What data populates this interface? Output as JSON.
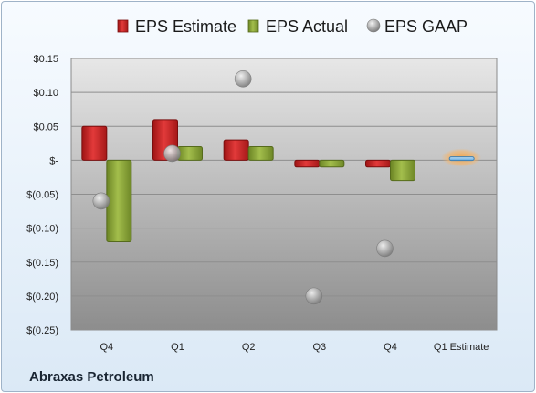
{
  "company": "Abraxas Petroleum",
  "chart_data": {
    "type": "bar",
    "categories": [
      "Q4",
      "Q1",
      "Q2",
      "Q3",
      "Q4",
      "Q1 Estimate"
    ],
    "y_tick_labels": [
      "$0.15",
      "$0.10",
      "$0.05",
      "$-",
      "$(0.05)",
      "$(0.10)",
      "$(0.15)",
      "$(0.20)",
      "$(0.25)"
    ],
    "y_tick_values": [
      0.15,
      0.1,
      0.05,
      0,
      -0.05,
      -0.1,
      -0.15,
      -0.2,
      -0.25
    ],
    "ylim": [
      -0.25,
      0.15
    ],
    "grid": true,
    "legend_placement": "top",
    "series": [
      {
        "name": "EPS Estimate",
        "kind": "bar",
        "color": "#d42a2a",
        "values": [
          0.05,
          0.06,
          0.03,
          -0.01,
          -0.01,
          null
        ]
      },
      {
        "name": "EPS Actual",
        "kind": "bar",
        "color": "#8faa3c",
        "values": [
          -0.12,
          0.02,
          0.02,
          -0.01,
          -0.03,
          null
        ]
      },
      {
        "name": "EPS GAAP",
        "kind": "point",
        "color": "#a9a9a9",
        "values": [
          -0.06,
          0.01,
          0.12,
          -0.2,
          -0.13,
          null
        ]
      },
      {
        "name": "",
        "kind": "estimate-bar",
        "color": "#7ab8e6",
        "glow": "#f5a54a",
        "values": [
          null,
          null,
          null,
          null,
          null,
          0.005
        ]
      }
    ]
  }
}
